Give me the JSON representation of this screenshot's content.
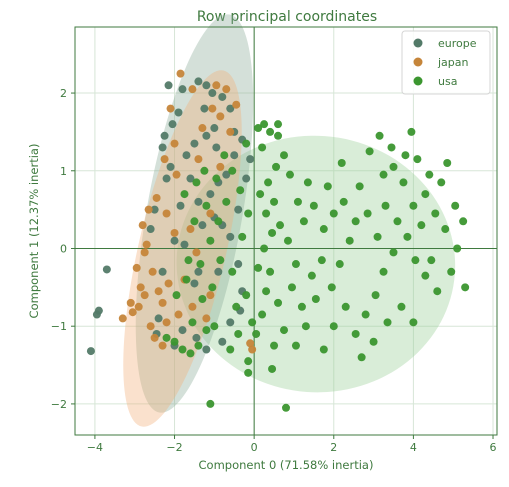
{
  "colors": {
    "europe": "#537a68",
    "japan": "#c5853a",
    "usa": "#3b962f",
    "europe_ellipse": "#8fae9a",
    "japan_ellipse": "#f2b07c",
    "usa_ellipse": "#9ccf98",
    "axis_green": "#3f7a3f",
    "grid": "#d7e6d7"
  },
  "chart_data": {
    "type": "scatter",
    "title": "Row principal coordinates",
    "xlabel": "Component 0 (71.58% inertia)",
    "ylabel": "Component 1 (12.37% inertia)",
    "xlim": [
      -4.5,
      6.1
    ],
    "ylim": [
      -2.4,
      2.85
    ],
    "xticks": [
      -4,
      -2,
      0,
      2,
      4,
      6
    ],
    "yticks": [
      -2,
      -1,
      0,
      1,
      2
    ],
    "grid": true,
    "legend_position": "top-right",
    "series": [
      {
        "name": "europe",
        "key": "europe",
        "points": [
          [
            -4.1,
            -1.32
          ],
          [
            -3.95,
            -0.85
          ],
          [
            -3.9,
            -0.8
          ],
          [
            -3.7,
            -0.27
          ],
          [
            -2.4,
            -0.9
          ],
          [
            -2.3,
            -0.3
          ],
          [
            -2.5,
            0.5
          ],
          [
            -2.2,
            0.9
          ],
          [
            -2.3,
            1.3
          ],
          [
            -2.25,
            1.45
          ],
          [
            -2.05,
            1.6
          ],
          [
            -1.9,
            1.75
          ],
          [
            -1.8,
            2.05
          ],
          [
            -2.15,
            2.1
          ],
          [
            -1.4,
            2.15
          ],
          [
            -1.2,
            2.1
          ],
          [
            -1.05,
            2.0
          ],
          [
            -0.8,
            1.95
          ],
          [
            -0.6,
            1.8
          ],
          [
            -0.5,
            1.5
          ],
          [
            -0.3,
            1.4
          ],
          [
            -0.1,
            1.15
          ],
          [
            -0.2,
            0.9
          ],
          [
            -0.5,
            1.2
          ],
          [
            -0.7,
            0.95
          ],
          [
            -0.9,
            0.85
          ],
          [
            -1.1,
            0.7
          ],
          [
            -1.4,
            0.6
          ],
          [
            -1.6,
            0.9
          ],
          [
            -1.7,
            1.2
          ],
          [
            -1.5,
            1.35
          ],
          [
            -1.2,
            1.45
          ],
          [
            -0.95,
            1.3
          ],
          [
            -1.3,
            0.3
          ],
          [
            -1.0,
            0.4
          ],
          [
            -0.8,
            0.3
          ],
          [
            -0.6,
            0.15
          ],
          [
            -0.4,
            -0.2
          ],
          [
            -0.3,
            -0.55
          ],
          [
            -0.35,
            -0.8
          ],
          [
            -0.6,
            -0.95
          ],
          [
            -0.8,
            -1.2
          ],
          [
            -1.2,
            -1.3
          ],
          [
            -1.45,
            -1.15
          ],
          [
            -1.8,
            -1.05
          ],
          [
            -2.0,
            -1.25
          ],
          [
            -2.45,
            -1.1
          ],
          [
            -1.4,
            -0.3
          ],
          [
            -1.75,
            0.05
          ],
          [
            -2.0,
            0.1
          ],
          [
            -2.6,
            0.25
          ],
          [
            -1.5,
            -0.45
          ],
          [
            -0.9,
            -0.3
          ],
          [
            -0.4,
            0.5
          ],
          [
            -1.25,
            1.8
          ],
          [
            -1.0,
            1.55
          ],
          [
            -2.1,
            1.05
          ],
          [
            -1.85,
            0.55
          ]
        ]
      },
      {
        "name": "japan",
        "key": "japan",
        "points": [
          [
            -3.3,
            -0.9
          ],
          [
            -3.05,
            -0.82
          ],
          [
            -3.1,
            -0.7
          ],
          [
            -2.85,
            -0.5
          ],
          [
            -2.95,
            -0.25
          ],
          [
            -2.75,
            -0.05
          ],
          [
            -2.8,
            0.3
          ],
          [
            -2.7,
            0.05
          ],
          [
            -2.55,
            -0.3
          ],
          [
            -2.4,
            -0.55
          ],
          [
            -2.3,
            -0.7
          ],
          [
            -2.2,
            -0.95
          ],
          [
            -2.6,
            -1.0
          ],
          [
            -2.9,
            -0.75
          ],
          [
            -2.5,
            -1.15
          ],
          [
            -2.3,
            -1.25
          ],
          [
            -2.45,
            0.65
          ],
          [
            -2.2,
            0.45
          ],
          [
            -2.0,
            0.2
          ],
          [
            -2.25,
            1.15
          ],
          [
            -1.95,
            0.95
          ],
          [
            -2.0,
            1.35
          ],
          [
            -2.1,
            1.8
          ],
          [
            -1.85,
            2.25
          ],
          [
            -1.55,
            2.05
          ],
          [
            -1.3,
            1.55
          ],
          [
            -1.05,
            1.8
          ],
          [
            -0.85,
            1.7
          ],
          [
            -0.7,
            2.05
          ],
          [
            -0.45,
            1.85
          ],
          [
            -0.6,
            1.5
          ],
          [
            -1.1,
            0.45
          ],
          [
            -1.6,
            0.25
          ],
          [
            -1.45,
            -0.05
          ],
          [
            -1.75,
            -0.4
          ],
          [
            -1.55,
            -0.75
          ],
          [
            -1.1,
            -0.6
          ],
          [
            -1.9,
            -0.85
          ],
          [
            -2.65,
            0.5
          ],
          [
            -1.4,
            1.15
          ],
          [
            -0.95,
            2.1
          ],
          [
            -0.85,
            1.05
          ],
          [
            -1.2,
            -0.9
          ],
          [
            -2.15,
            -0.45
          ],
          [
            -2.75,
            -0.6
          ],
          [
            -0.05,
            -1.3
          ],
          [
            -0.1,
            -1.22
          ]
        ]
      },
      {
        "name": "usa",
        "key": "usa",
        "points": [
          [
            -2.2,
            -1.15
          ],
          [
            -2.0,
            -1.2
          ],
          [
            -1.8,
            -1.3
          ],
          [
            -1.6,
            -1.35
          ],
          [
            -1.4,
            -1.25
          ],
          [
            -1.2,
            -1.05
          ],
          [
            -1.0,
            -1.0
          ],
          [
            -1.55,
            -0.95
          ],
          [
            -1.95,
            -0.6
          ],
          [
            -1.7,
            -0.4
          ],
          [
            -1.3,
            -0.65
          ],
          [
            -1.05,
            -0.5
          ],
          [
            -1.65,
            -0.15
          ],
          [
            -1.35,
            -0.2
          ],
          [
            -1.1,
            0.1
          ],
          [
            -0.85,
            -0.15
          ],
          [
            -1.5,
            0.35
          ],
          [
            -1.2,
            0.55
          ],
          [
            -0.9,
            0.35
          ],
          [
            -0.7,
            0.6
          ],
          [
            -1.75,
            0.7
          ],
          [
            -1.45,
            0.85
          ],
          [
            -1.25,
            1.0
          ],
          [
            -0.95,
            0.9
          ],
          [
            -0.75,
            1.2
          ],
          [
            -0.55,
            1.0
          ],
          [
            -0.35,
            0.75
          ],
          [
            -0.15,
            0.45
          ],
          [
            -0.3,
            0.15
          ],
          [
            -0.55,
            -0.3
          ],
          [
            -0.2,
            -0.6
          ],
          [
            -0.4,
            -1.1
          ],
          [
            -0.6,
            -1.3
          ],
          [
            -0.15,
            -1.45
          ],
          [
            0.05,
            -1.1
          ],
          [
            0.2,
            -0.85
          ],
          [
            0.3,
            -0.55
          ],
          [
            0.4,
            -0.3
          ],
          [
            0.25,
            0.0
          ],
          [
            0.45,
            0.2
          ],
          [
            0.3,
            0.45
          ],
          [
            0.5,
            0.6
          ],
          [
            0.35,
            0.85
          ],
          [
            0.55,
            1.05
          ],
          [
            0.2,
            1.3
          ],
          [
            0.4,
            1.5
          ],
          [
            0.25,
            1.6
          ],
          [
            0.6,
            1.45
          ],
          [
            0.75,
            1.2
          ],
          [
            0.9,
            0.95
          ],
          [
            0.65,
            0.3
          ],
          [
            0.85,
            0.1
          ],
          [
            1.05,
            -0.2
          ],
          [
            0.95,
            -0.5
          ],
          [
            1.2,
            -0.75
          ],
          [
            0.75,
            -1.05
          ],
          [
            0.5,
            -1.25
          ],
          [
            1.05,
            -1.25
          ],
          [
            1.3,
            -1.0
          ],
          [
            1.55,
            -0.65
          ],
          [
            1.45,
            -0.35
          ],
          [
            1.7,
            -0.15
          ],
          [
            1.25,
            0.35
          ],
          [
            1.5,
            0.55
          ],
          [
            1.75,
            0.25
          ],
          [
            2.0,
            0.45
          ],
          [
            1.85,
            0.8
          ],
          [
            2.25,
            0.6
          ],
          [
            2.55,
            0.35
          ],
          [
            2.4,
            0.1
          ],
          [
            2.15,
            -0.2
          ],
          [
            1.95,
            -0.5
          ],
          [
            2.3,
            -0.75
          ],
          [
            2.0,
            -1.0
          ],
          [
            1.75,
            -1.3
          ],
          [
            2.55,
            -1.1
          ],
          [
            2.8,
            -0.85
          ],
          [
            3.05,
            -0.6
          ],
          [
            3.25,
            -0.3
          ],
          [
            3.5,
            -0.05
          ],
          [
            3.1,
            0.15
          ],
          [
            2.85,
            0.45
          ],
          [
            3.3,
            0.55
          ],
          [
            3.6,
            0.35
          ],
          [
            3.85,
            0.15
          ],
          [
            4.05,
            -0.15
          ],
          [
            4.3,
            -0.35
          ],
          [
            4.6,
            -0.55
          ],
          [
            4.95,
            -0.3
          ],
          [
            5.1,
            0.0
          ],
          [
            4.8,
            0.25
          ],
          [
            4.55,
            0.45
          ],
          [
            4.3,
            0.7
          ],
          [
            4.0,
            0.55
          ],
          [
            3.75,
            0.85
          ],
          [
            3.5,
            1.05
          ],
          [
            3.25,
            0.95
          ],
          [
            2.9,
            1.25
          ],
          [
            3.15,
            1.45
          ],
          [
            3.45,
            1.3
          ],
          [
            3.8,
            1.2
          ],
          [
            4.1,
            1.15
          ],
          [
            4.4,
            0.95
          ],
          [
            4.7,
            0.85
          ],
          [
            5.05,
            0.55
          ],
          [
            5.25,
            0.35
          ],
          [
            3.7,
            -0.75
          ],
          [
            3.35,
            -0.95
          ],
          [
            3.0,
            -1.2
          ],
          [
            2.7,
            -1.4
          ],
          [
            4.0,
            -0.95
          ],
          [
            4.45,
            -0.15
          ],
          [
            5.3,
            -0.5
          ],
          [
            4.2,
            0.3
          ],
          [
            0.6,
            1.6
          ],
          [
            0.1,
            1.55
          ],
          [
            -0.2,
            1.35
          ],
          [
            0.45,
            -1.55
          ],
          [
            0.8,
            -2.05
          ],
          [
            -0.15,
            -1.6
          ],
          [
            -1.1,
            -2.0
          ],
          [
            0.15,
            0.7
          ],
          [
            0.1,
            -0.25
          ],
          [
            1.35,
            0.85
          ],
          [
            2.65,
            0.8
          ],
          [
            3.95,
            1.5
          ],
          [
            4.85,
            1.1
          ],
          [
            2.2,
            1.1
          ],
          [
            1.1,
            0.6
          ],
          [
            -0.45,
            -0.75
          ],
          [
            -0.05,
            -0.95
          ],
          [
            0.6,
            -0.7
          ]
        ]
      }
    ],
    "ellipses": [
      {
        "series": "usa",
        "cx": 1.55,
        "cy": -0.2,
        "rx": 3.5,
        "ry": 1.65,
        "angle": 4
      },
      {
        "series": "europe",
        "cx": -1.5,
        "cy": 0.45,
        "rx": 1.2,
        "ry": 2.6,
        "angle": 10
      },
      {
        "series": "japan",
        "cx": -1.8,
        "cy": 0.0,
        "rx": 1.1,
        "ry": 2.35,
        "angle": 13
      }
    ]
  }
}
